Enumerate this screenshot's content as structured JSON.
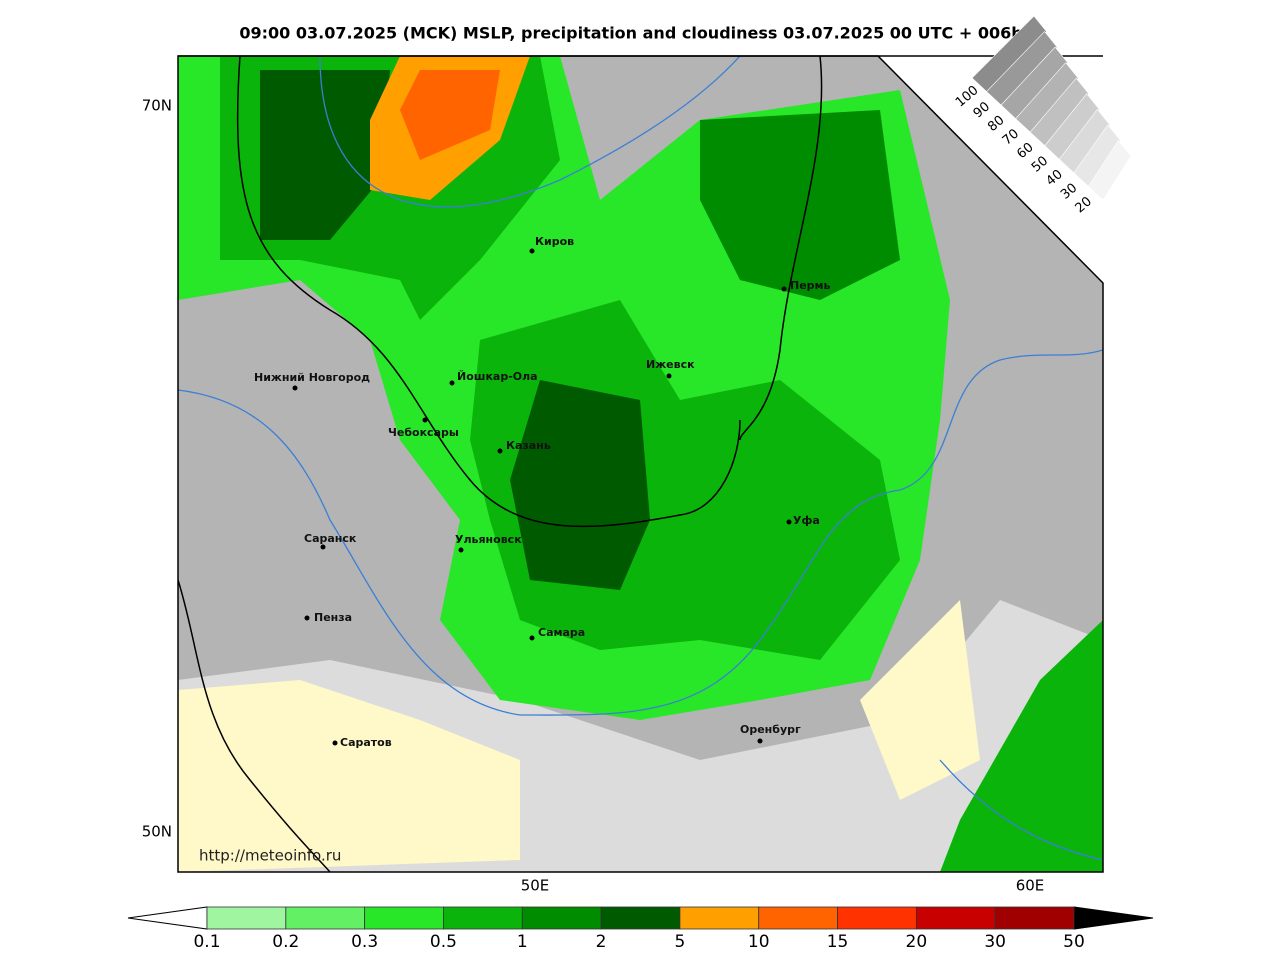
{
  "header": {
    "title": "09:00 03.07.2025 (MCK) MSLP, precipitation and cloudiness 03.07.2025 00 UTC + 006h"
  },
  "map": {
    "lat_labels": [
      "70N",
      "50N"
    ],
    "lon_labels": [
      "50E",
      "60E"
    ],
    "cities": [
      "Киров",
      "Пермь",
      "Нижний Новгород",
      "Йошкар-Ола",
      "Ижевск",
      "Чебоксары",
      "Казань",
      "Уфа",
      "Саранск",
      "Ульяновск",
      "Пенза",
      "Самара",
      "Оренбург",
      "Саратов"
    ],
    "url": "http://meteoinfo.ru"
  },
  "precip_scale": {
    "levels": [
      0.1,
      0.2,
      0.3,
      0.5,
      1,
      2,
      5,
      10,
      15,
      20,
      30,
      50
    ],
    "colors": [
      "#a0f5a0",
      "#64f064",
      "#28e628",
      "#0ab40a",
      "#008c00",
      "#005a00",
      "#ff9f00",
      "#ff6400",
      "#ff3200",
      "#c80000",
      "#a00000"
    ]
  },
  "cloud_scale": {
    "levels": [
      100,
      90,
      80,
      70,
      60,
      50,
      40,
      30,
      20
    ]
  }
}
